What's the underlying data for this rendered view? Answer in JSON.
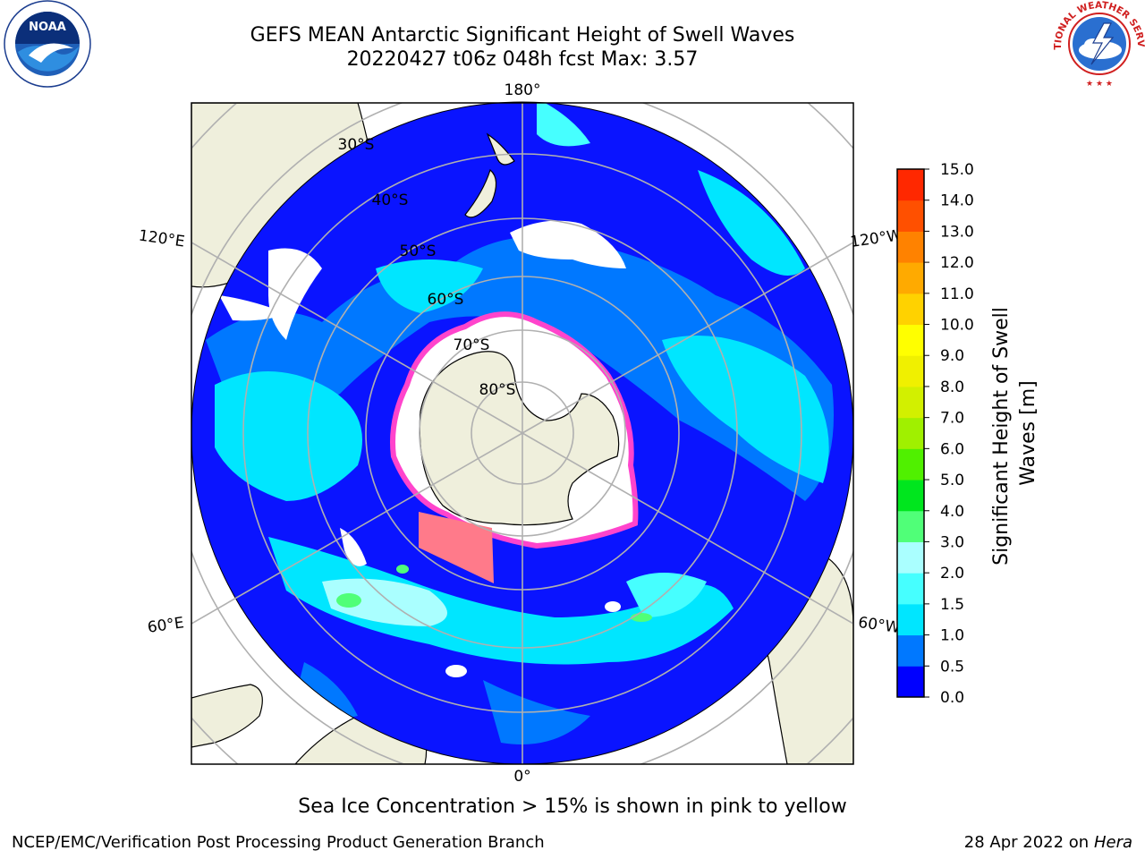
{
  "header": {
    "title_line1": "GEFS MEAN Antarctic Significant Height of Swell Waves",
    "title_line2": "20220427 t06z 048h fcst   Max: 3.57"
  },
  "logos": {
    "left": {
      "icon": "noaa-logo",
      "text": "NOAA",
      "ring_text": "NATIONAL OCEANIC AND ATMOSPHERIC ADMINISTRATION",
      "bottom_text": "U.S. DEPARTMENT OF COMMERCE"
    },
    "right": {
      "icon": "nws-logo",
      "ring_text": "NATIONAL WEATHER SERVICE"
    }
  },
  "map": {
    "projection": "south-polar-stereographic",
    "center": "south pole",
    "longitude_labels": [
      "180°",
      "120°E",
      "120°W",
      "60°E",
      "60°W",
      "0°"
    ],
    "latitude_labels": [
      "30°S",
      "40°S",
      "50°S",
      "60°S",
      "70°S",
      "80°S"
    ],
    "colors": {
      "land": "#efefdc",
      "coastline": "#000000",
      "gridline": "#b0b0b0",
      "sea_ice": "#ff44cc"
    }
  },
  "colorbar": {
    "label": "Significant Height of Swell Waves [m]",
    "ticks": [
      "0.0",
      "0.5",
      "1.0",
      "1.5",
      "2.0",
      "3.0",
      "4.0",
      "5.0",
      "6.0",
      "7.0",
      "8.0",
      "9.0",
      "10.0",
      "11.0",
      "12.0",
      "13.0",
      "14.0",
      "15.0"
    ],
    "colors": [
      "#0000ff",
      "#0078ff",
      "#00e6ff",
      "#46ffff",
      "#aaffff",
      "#50ff78",
      "#00e61e",
      "#50f000",
      "#a0f000",
      "#d2f000",
      "#f0f000",
      "#ffff00",
      "#ffd200",
      "#ffaa00",
      "#ff8200",
      "#ff5000",
      "#ff2800"
    ]
  },
  "footer": {
    "note": "Sea Ice Concentration > 15% is shown in pink to yellow",
    "credit_left": "NCEP/EMC/Verification Post Processing Product Generation Branch",
    "credit_right_date": "28 Apr 2022 on",
    "credit_right_host": "Hera"
  }
}
